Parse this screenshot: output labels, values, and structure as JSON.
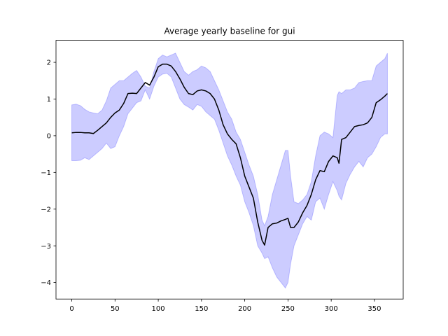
{
  "chart_data": {
    "type": "line",
    "title": "Average yearly baseline for gui",
    "xlabel": "",
    "ylabel": "",
    "xlim": [
      -18.25,
      383.25
    ],
    "ylim": [
      -4.45,
      2.6
    ],
    "xticks": [
      0,
      50,
      100,
      150,
      200,
      250,
      300,
      350
    ],
    "yticks": [
      -4,
      -3,
      -2,
      -1,
      0,
      1,
      2
    ],
    "grid": false,
    "legend": "none",
    "colors": {
      "line": "#000000",
      "band": "#0000ff",
      "band_opacity": 0.2
    },
    "series": [
      {
        "x": [
          0,
          5,
          10,
          15,
          20,
          25,
          30,
          35,
          40,
          45,
          50,
          55,
          60,
          65,
          70,
          75,
          80,
          85,
          90,
          95,
          100,
          105,
          110,
          115,
          120,
          125,
          130,
          135,
          140,
          145,
          150,
          155,
          160,
          165,
          170,
          175,
          180,
          185,
          190,
          195,
          200,
          205,
          210,
          215,
          220,
          223,
          227,
          232,
          237,
          242,
          247,
          250,
          253,
          257,
          262,
          267,
          272,
          277,
          282,
          287,
          292,
          297,
          302,
          307,
          309,
          312,
          317,
          322,
          327,
          332,
          337,
          342,
          347,
          352,
          357,
          362,
          365
        ],
        "y": [
          0.08,
          0.09,
          0.09,
          0.08,
          0.08,
          0.06,
          0.15,
          0.25,
          0.35,
          0.5,
          0.62,
          0.7,
          0.88,
          1.15,
          1.16,
          1.15,
          1.3,
          1.45,
          1.38,
          1.6,
          1.88,
          1.95,
          1.95,
          1.9,
          1.75,
          1.55,
          1.32,
          1.15,
          1.12,
          1.22,
          1.25,
          1.22,
          1.15,
          1.0,
          0.7,
          0.3,
          0.05,
          -0.1,
          -0.22,
          -0.6,
          -1.1,
          -1.4,
          -1.7,
          -2.35,
          -2.85,
          -2.98,
          -2.5,
          -2.4,
          -2.38,
          -2.32,
          -2.28,
          -2.25,
          -2.5,
          -2.5,
          -2.35,
          -2.1,
          -1.9,
          -1.6,
          -1.2,
          -0.95,
          -0.98,
          -0.7,
          -0.55,
          -0.6,
          -0.75,
          -0.1,
          -0.05,
          0.1,
          0.25,
          0.28,
          0.3,
          0.35,
          0.5,
          0.9,
          0.98,
          1.08,
          1.15
        ],
        "upper": [
          0.84,
          0.86,
          0.82,
          0.72,
          0.65,
          0.62,
          0.6,
          0.7,
          0.95,
          1.3,
          1.4,
          1.5,
          1.5,
          1.6,
          1.7,
          1.78,
          1.6,
          1.35,
          1.3,
          1.75,
          2.1,
          2.2,
          2.15,
          2.2,
          2.25,
          2.0,
          1.75,
          1.65,
          1.75,
          1.8,
          1.9,
          1.85,
          1.75,
          1.5,
          1.25,
          0.95,
          0.65,
          0.45,
          0.1,
          -0.1,
          -0.45,
          -0.8,
          -1.1,
          -1.6,
          -2.3,
          -2.45,
          -2.2,
          -1.6,
          -1.2,
          -0.8,
          -0.4,
          -0.4,
          -1.1,
          -1.8,
          -1.85,
          -1.75,
          -1.6,
          -1.25,
          -0.55,
          0.0,
          0.1,
          0.05,
          -0.05,
          1.1,
          1.2,
          1.15,
          1.25,
          1.25,
          1.3,
          1.45,
          1.48,
          1.5,
          1.5,
          1.9,
          2.0,
          2.1,
          2.25
        ],
        "lower": [
          -0.68,
          -0.68,
          -0.67,
          -0.6,
          -0.65,
          -0.55,
          -0.45,
          -0.35,
          -0.2,
          -0.35,
          -0.3,
          0.0,
          0.25,
          0.6,
          0.75,
          0.9,
          0.95,
          1.25,
          1.0,
          1.35,
          1.6,
          1.68,
          1.7,
          1.6,
          1.3,
          1.0,
          0.85,
          0.78,
          0.7,
          0.85,
          0.8,
          0.65,
          0.55,
          0.45,
          0.15,
          -0.2,
          -0.55,
          -0.8,
          -1.1,
          -1.35,
          -1.8,
          -2.1,
          -2.45,
          -3.0,
          -3.2,
          -3.35,
          -3.3,
          -3.6,
          -3.85,
          -4.0,
          -4.15,
          -4.0,
          -3.5,
          -3.0,
          -2.7,
          -2.4,
          -2.2,
          -2.3,
          -1.8,
          -1.7,
          -2.0,
          -1.6,
          -1.25,
          -1.5,
          -1.65,
          -1.75,
          -1.3,
          -1.05,
          -0.85,
          -0.7,
          -0.85,
          -0.6,
          -0.5,
          -0.3,
          -0.05,
          0.05,
          0.05
        ]
      }
    ]
  }
}
